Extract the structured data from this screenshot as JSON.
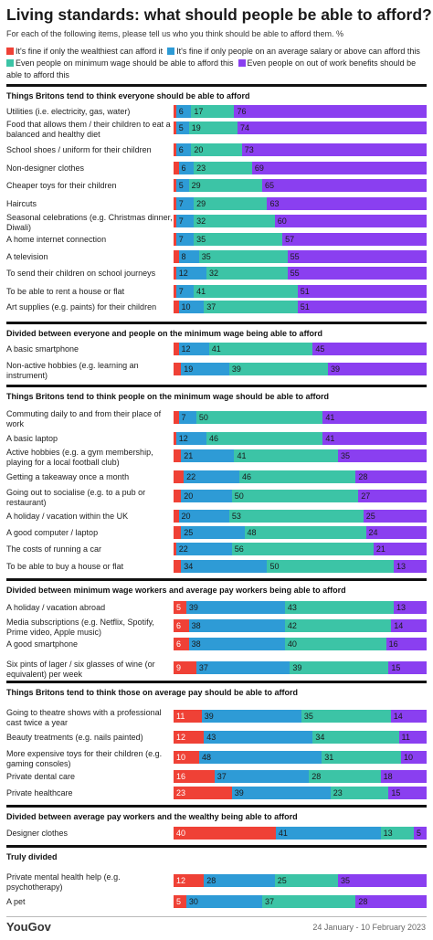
{
  "title": "Living standards: what should people be able to afford?",
  "subtitle": "For each of the following items, please tell us who you think should be able to afford them. %",
  "legend": [
    {
      "label": "It's fine if only the wealthiest can afford it",
      "color": "#ef4136"
    },
    {
      "label": "It's fine if only people on an average salary or above can afford this",
      "color": "#2e9bd6"
    },
    {
      "label": "Even people on minimum wage should be able to afford this",
      "color": "#3cc4a6"
    },
    {
      "label": "Even people on out of work benefits should be able to afford this",
      "color": "#8a3ff0"
    }
  ],
  "footer": {
    "brand": "YouGov",
    "date_range": "24 January - 10 February 2023"
  },
  "chart_data": {
    "type": "bar",
    "orientation": "horizontal",
    "stacked": true,
    "xlim": [
      0,
      100
    ],
    "series_names": [
      "It's fine if only the wealthiest can afford it",
      "It's fine if only people on an average salary or above can afford this",
      "Even people on minimum wage should be able to afford this",
      "Even people on out of work benefits should be able to afford this"
    ],
    "sections": [
      {
        "title": "Things Britons tend to think everyone should be able to afford",
        "rows": [
          {
            "label": "Utilities (i.e. electricity, gas, water)",
            "values": [
              1,
              6,
              17,
              76
            ]
          },
          {
            "label": "Food that allows them / their children to eat a balanced and healthy diet",
            "values": [
              1,
              5,
              19,
              74
            ]
          },
          {
            "label": "School shoes / uniform for their children",
            "values": [
              1,
              6,
              20,
              73
            ]
          },
          {
            "label": "Non-designer clothes",
            "values": [
              2,
              6,
              23,
              69
            ]
          },
          {
            "label": "Cheaper toys for their children",
            "values": [
              1,
              5,
              29,
              65
            ]
          },
          {
            "label": "Haircuts",
            "values": [
              1,
              7,
              29,
              63
            ]
          },
          {
            "label": "Seasonal celebrations (e.g. Christmas dinner, Diwali)",
            "values": [
              1,
              7,
              32,
              60
            ]
          },
          {
            "label": "A home internet connection",
            "values": [
              1,
              7,
              35,
              57
            ]
          },
          {
            "label": "A television",
            "values": [
              2,
              8,
              35,
              55
            ]
          },
          {
            "label": "To send their children on school journeys",
            "values": [
              1,
              12,
              32,
              55
            ]
          },
          {
            "label": "To be able to rent a house or flat",
            "values": [
              1,
              7,
              41,
              51
            ]
          },
          {
            "label": "Art supplies (e.g. paints) for their children",
            "values": [
              2,
              10,
              37,
              51
            ]
          }
        ]
      },
      {
        "title": "Divided between everyone and people on the minimum wage being able to afford",
        "rows": [
          {
            "label": "A basic smartphone",
            "values": [
              2,
              12,
              41,
              45
            ]
          },
          {
            "label": "Non-active hobbies (e.g. learning an instrument)",
            "values": [
              3,
              19,
              39,
              39
            ]
          }
        ]
      },
      {
        "title": "Things Britons tend to think people on the minimum wage should be able to afford",
        "rows": [
          {
            "label": "Commuting daily to and from their place of work",
            "values": [
              2,
              7,
              50,
              41
            ]
          },
          {
            "label": "A basic laptop",
            "values": [
              1,
              12,
              46,
              41
            ]
          },
          {
            "label": "Active hobbies (e.g. a gym membership, playing for a local football club)",
            "values": [
              3,
              21,
              41,
              35
            ]
          },
          {
            "label": "Getting a takeaway once a month",
            "values": [
              4,
              22,
              46,
              28
            ]
          },
          {
            "label": "Going out to socialise (e.g. to a pub or restaurant)",
            "values": [
              3,
              20,
              50,
              27
            ]
          },
          {
            "label": "A holiday / vacation within the UK",
            "values": [
              2,
              20,
              53,
              25
            ]
          },
          {
            "label": "A good computer / laptop",
            "values": [
              3,
              25,
              48,
              24
            ]
          },
          {
            "label": "The costs of running a car",
            "values": [
              1,
              22,
              56,
              21
            ]
          },
          {
            "label": "To be able to buy a house or flat",
            "values": [
              3,
              34,
              50,
              13
            ]
          }
        ]
      },
      {
        "title": "Divided between minimum wage workers and average pay workers being able to afford",
        "rows": [
          {
            "label": "A holiday / vacation abroad",
            "values": [
              5,
              39,
              43,
              13
            ]
          },
          {
            "label": "Media subscriptions (e.g. Netflix, Spotify, Prime video, Apple music)",
            "values": [
              6,
              38,
              42,
              14
            ]
          },
          {
            "label": "A good smartphone",
            "values": [
              6,
              38,
              40,
              16
            ]
          },
          {
            "label": "Six pints of lager / six glasses of wine (or equivalent) per week",
            "values": [
              9,
              37,
              39,
              15
            ]
          }
        ]
      },
      {
        "title": "Things Britons tend to think those on average pay should be able to afford",
        "rows": [
          {
            "label": "Going to theatre shows with a professional cast twice a year",
            "values": [
              11,
              39,
              35,
              14
            ]
          },
          {
            "label": "Beauty treatments (e.g. nails painted)",
            "values": [
              12,
              43,
              34,
              11
            ]
          },
          {
            "label": "More expensive toys for their children (e.g. gaming consoles)",
            "values": [
              10,
              48,
              31,
              10
            ]
          },
          {
            "label": "Private dental care",
            "values": [
              16,
              37,
              28,
              18
            ]
          },
          {
            "label": "Private healthcare",
            "values": [
              23,
              39,
              23,
              15
            ]
          }
        ]
      },
      {
        "title": "Divided between average pay workers and the wealthy being able to afford",
        "rows": [
          {
            "label": "Designer clothes",
            "values": [
              40,
              41,
              13,
              5
            ]
          }
        ]
      },
      {
        "title": "Truly divided",
        "rows": [
          {
            "label": "Private mental health help (e.g. psychotherapy)",
            "values": [
              12,
              28,
              25,
              35
            ]
          },
          {
            "label": "A pet",
            "values": [
              5,
              30,
              37,
              28
            ]
          }
        ]
      }
    ]
  }
}
